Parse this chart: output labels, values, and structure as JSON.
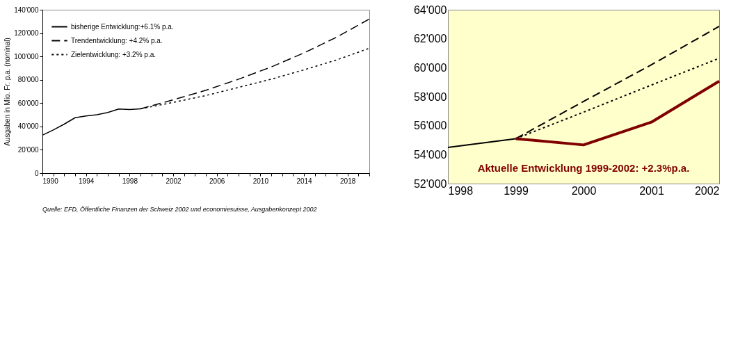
{
  "chart_data": [
    {
      "type": "line",
      "ylabel": "Ausgaben in Mio. Fr. p.a. (nominal)",
      "xlim": [
        1990,
        2020
      ],
      "xticks": [
        1990,
        {
          "value": 1991,
          "label": null
        },
        {
          "value": 1992,
          "label": null
        },
        {
          "value": 1993,
          "label": null
        },
        1994,
        {
          "value": 1995,
          "label": null
        },
        {
          "value": 1996,
          "label": null
        },
        {
          "value": 1997,
          "label": null
        },
        1998,
        {
          "value": 1999,
          "label": null
        },
        {
          "value": 2000,
          "label": null
        },
        {
          "value": 2001,
          "label": null
        },
        2002,
        {
          "value": 2003,
          "label": null
        },
        {
          "value": 2004,
          "label": null
        },
        {
          "value": 2005,
          "label": null
        },
        2006,
        {
          "value": 2007,
          "label": null
        },
        {
          "value": 2008,
          "label": null
        },
        {
          "value": 2009,
          "label": null
        },
        2010,
        {
          "value": 2011,
          "label": null
        },
        {
          "value": 2012,
          "label": null
        },
        {
          "value": 2013,
          "label": null
        },
        2014,
        {
          "value": 2015,
          "label": null
        },
        {
          "value": 2016,
          "label": null
        },
        {
          "value": 2017,
          "label": null
        },
        2018,
        {
          "value": 2019,
          "label": null
        },
        {
          "value": 2020,
          "label": null
        }
      ],
      "ylim": [
        0,
        140000
      ],
      "yticks": [
        {
          "value": 0,
          "label": "0"
        },
        {
          "value": 20000,
          "label": "20'000"
        },
        {
          "value": 40000,
          "label": "40'000"
        },
        {
          "value": 60000,
          "label": "60'000"
        },
        {
          "value": 80000,
          "label": "80'000"
        },
        {
          "value": 100000,
          "label": "100'000"
        },
        {
          "value": 120000,
          "label": "120'000"
        },
        {
          "value": 140000,
          "label": "140'000"
        }
      ],
      "grid": false,
      "legend": "top left",
      "marker": "none",
      "series": [
        {
          "name": "bisherige Entwicklung:+6.1% p.a.",
          "color": "#000000",
          "line_style": "solid",
          "x": [
            1990,
            1991,
            1992,
            1993,
            1994,
            1995,
            1996,
            1997,
            1998,
            1999
          ],
          "values": [
            32500,
            37000,
            42000,
            47500,
            49000,
            50000,
            52000,
            55000,
            54500,
            55100
          ]
        },
        {
          "name": "Trendentwicklung: +4.2% p.a.",
          "color": "#000000",
          "line_style": "dashed",
          "x": [
            1999,
            2002,
            2005,
            2008,
            2011,
            2014,
            2017,
            2020
          ],
          "values": [
            55100,
            62800,
            71000,
            80500,
            91000,
            103000,
            116500,
            132000
          ]
        },
        {
          "name": "Zielentwicklung: +3.2% p.a.",
          "color": "#000000",
          "line_style": "dotted",
          "x": [
            1999,
            2002,
            2005,
            2008,
            2011,
            2014,
            2017,
            2020
          ],
          "values": [
            55100,
            60600,
            66500,
            73500,
            80500,
            88500,
            97000,
            107000
          ]
        }
      ],
      "annotations": [
        "Quelle: EFD, Öffentliche Finanzen der Schweiz 2002 und economiesuisse, Ausgabenkonzept 2002"
      ]
    },
    {
      "type": "line",
      "xlim": [
        1998,
        2002
      ],
      "xticks": [
        1998,
        1999,
        2000,
        2001,
        2002
      ],
      "ylim": [
        52000,
        64000
      ],
      "yticks": [
        {
          "value": 52000,
          "label": "52'000"
        },
        {
          "value": 54000,
          "label": "54'000"
        },
        {
          "value": 56000,
          "label": "56'000"
        },
        {
          "value": 58000,
          "label": "58'000"
        },
        {
          "value": 60000,
          "label": "60'000"
        },
        {
          "value": 62000,
          "label": "62'000"
        },
        {
          "value": 64000,
          "label": "64'000"
        }
      ],
      "grid": false,
      "legend": false,
      "marker": "none",
      "series": [
        {
          "color": "#000000",
          "line_style": "solid",
          "x": [
            1998,
            1999
          ],
          "values": [
            54500,
            55100
          ]
        },
        {
          "color": "#000000",
          "line_style": "dashed",
          "x": [
            1999,
            2000,
            2001,
            2002
          ],
          "values": [
            55100,
            57670,
            60200,
            62850
          ]
        },
        {
          "color": "#000000",
          "line_style": "dotted",
          "x": [
            1999,
            2000,
            2001,
            2002
          ],
          "values": [
            55100,
            56930,
            58800,
            60650
          ]
        },
        {
          "name": "Aktuelle Entwicklung 1999-2002: +2.3%p.a.",
          "color": "#800000",
          "line_style": "solid",
          "x": [
            1999,
            2000,
            2001,
            2002
          ],
          "values": [
            55100,
            54670,
            56240,
            59070
          ]
        }
      ]
    }
  ]
}
